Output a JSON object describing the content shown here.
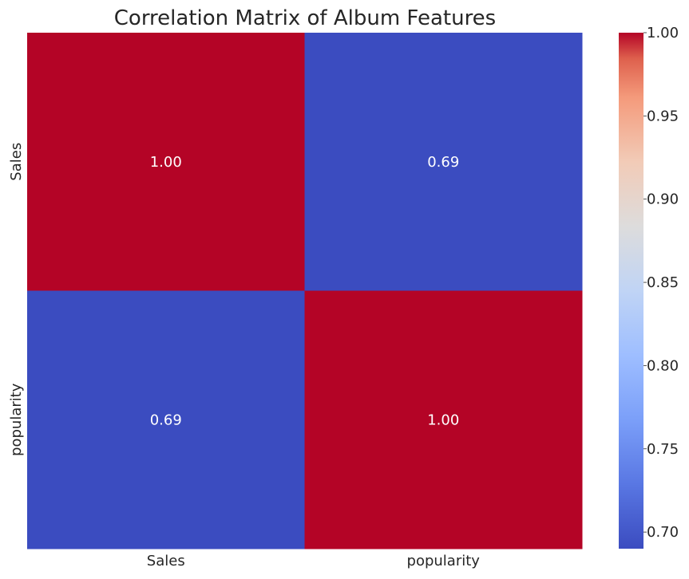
{
  "chart_data": {
    "type": "heatmap",
    "title": "Correlation Matrix of Album Features",
    "xlabel": "",
    "ylabel": "",
    "x_categories": [
      "Sales",
      "popularity"
    ],
    "y_categories": [
      "Sales",
      "popularity"
    ],
    "values": [
      [
        1.0,
        0.69
      ],
      [
        0.69,
        1.0
      ]
    ],
    "cell_labels": [
      [
        "1.00",
        "0.69"
      ],
      [
        "0.69",
        "1.00"
      ]
    ],
    "colormap": "coolwarm",
    "colors": {
      "high": "#b40426",
      "low": "#3b4cc0"
    },
    "colorbar": {
      "range": [
        0.69,
        1.0
      ],
      "ticks": [
        0.7,
        0.75,
        0.8,
        0.85,
        0.9,
        0.95,
        1.0
      ],
      "tick_labels": [
        "0.70",
        "0.75",
        "0.80",
        "0.85",
        "0.90",
        "0.95",
        "1.00"
      ]
    },
    "grid": false
  }
}
